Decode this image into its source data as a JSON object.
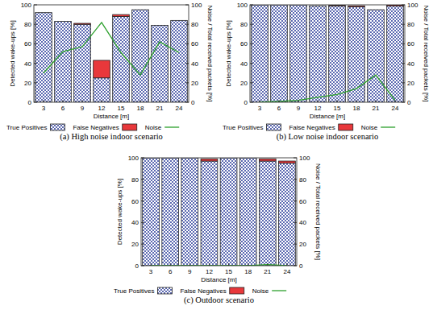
{
  "chart_data": [
    {
      "type": "bar",
      "title": "(a) High noise indoor scenario",
      "x_label": "Distance [m]",
      "y_label": "Detected wake-ups [%]",
      "y2_label": "Noise / Total received packets [%]",
      "categories": [
        "3",
        "6",
        "9",
        "12",
        "15",
        "18",
        "21",
        "24"
      ],
      "series": [
        {
          "name": "True Positives",
          "type": "bar",
          "color": "#33449e",
          "values": [
            92,
            83,
            80,
            25,
            88,
            95,
            79,
            84
          ]
        },
        {
          "name": "False Negatives",
          "type": "bar",
          "color": "#e8383b",
          "values": [
            0,
            0,
            1,
            18,
            2,
            0,
            0,
            0
          ]
        },
        {
          "name": "Noise",
          "type": "line",
          "axis": "y2",
          "color": "#2ca02c",
          "values": [
            30,
            52,
            57,
            82,
            51,
            28,
            62,
            51
          ]
        }
      ],
      "stacked": true,
      "grid": false,
      "legend": "bottom",
      "ylim": [
        0,
        100
      ],
      "yticks": [
        0,
        20,
        40,
        60,
        80,
        100
      ],
      "y2lim": [
        0,
        100
      ],
      "y2ticks": [
        0,
        20,
        40,
        60,
        80,
        100
      ]
    },
    {
      "type": "bar",
      "title": "(b) Low noise indoor scenario",
      "x_label": "Distance [m]",
      "y_label": "Detected wake-ups [%]",
      "y2_label": "Noise / Total received packets [%]",
      "categories": [
        "3",
        "6",
        "9",
        "12",
        "15",
        "18",
        "21",
        "24"
      ],
      "series": [
        {
          "name": "True Positives",
          "type": "bar",
          "color": "#33449e",
          "values": [
            100,
            100,
            100,
            99,
            99,
            98,
            95,
            99
          ]
        },
        {
          "name": "False Negatives",
          "type": "bar",
          "color": "#e8383b",
          "values": [
            0,
            0,
            0,
            0,
            0.5,
            1,
            0,
            1
          ]
        },
        {
          "name": "Noise",
          "type": "line",
          "axis": "y2",
          "color": "#2ca02c",
          "values": [
            0,
            1,
            2,
            5,
            8,
            14,
            28,
            2
          ]
        }
      ],
      "stacked": true,
      "grid": false,
      "legend": "bottom",
      "ylim": [
        0,
        100
      ],
      "yticks": [
        0,
        20,
        40,
        60,
        80,
        100
      ],
      "y2lim": [
        0,
        100
      ],
      "y2ticks": [
        0,
        20,
        40,
        60,
        80,
        100
      ]
    },
    {
      "type": "bar",
      "title": "(c) Outdoor scenario",
      "x_label": "Distance [m]",
      "y_label": "Detected wake-ups [%]",
      "y2_label": "Noise / Total received packets [%]",
      "categories": [
        "3",
        "6",
        "9",
        "12",
        "15",
        "18",
        "21",
        "24"
      ],
      "series": [
        {
          "name": "True Positives",
          "type": "bar",
          "color": "#33449e",
          "values": [
            100,
            100,
            100,
            97,
            100,
            100,
            97,
            95
          ]
        },
        {
          "name": "False Negatives",
          "type": "bar",
          "color": "#e8383b",
          "values": [
            0,
            0,
            0,
            2,
            0,
            0,
            2,
            2
          ]
        },
        {
          "name": "Noise",
          "type": "line",
          "axis": "y2",
          "color": "#2ca02c",
          "values": [
            0,
            0,
            0,
            0,
            0,
            0,
            1,
            0
          ]
        }
      ],
      "stacked": true,
      "grid": false,
      "legend": "bottom",
      "ylim": [
        0,
        100
      ],
      "yticks": [
        0,
        20,
        40,
        60,
        80,
        100
      ],
      "y2lim": [
        0,
        100
      ],
      "y2ticks": [
        0,
        20,
        40,
        60,
        80,
        100
      ]
    }
  ]
}
